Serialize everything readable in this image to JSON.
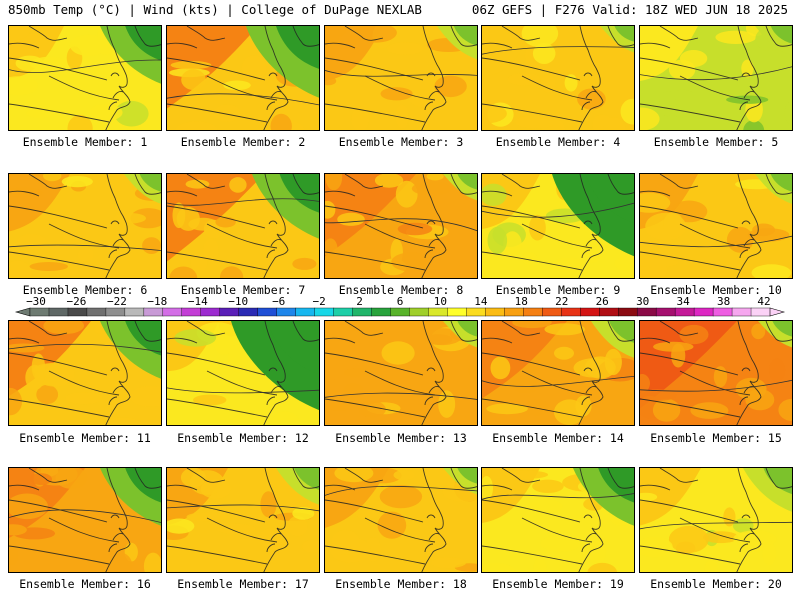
{
  "header": {
    "left": "850mb Temp (°C) | Wind (kts) | College of DuPage NEXLAB",
    "right": "06Z GEFS | F276 Valid: 18Z WED JUN 18 2025"
  },
  "member_caption_prefix": "Ensemble Member:",
  "members": [
    {
      "number": "1",
      "warmth": 0.42,
      "cool_ne": 0.55,
      "hot_nw": 0.25
    },
    {
      "number": "2",
      "warmth": 0.55,
      "cool_ne": 0.75,
      "hot_nw": 0.85
    },
    {
      "number": "3",
      "warmth": 0.55,
      "cool_ne": 0.2,
      "hot_nw": 0.3
    },
    {
      "number": "4",
      "warmth": 0.48,
      "cool_ne": 0.1,
      "hot_nw": 0.2
    },
    {
      "number": "5",
      "warmth": 0.3,
      "cool_ne": 0.15,
      "hot_nw": 0.3
    },
    {
      "number": "6",
      "warmth": 0.55,
      "cool_ne": 0.15,
      "hot_nw": 0.35
    },
    {
      "number": "7",
      "warmth": 0.58,
      "cool_ne": 0.65,
      "hot_nw": 0.95
    },
    {
      "number": "8",
      "warmth": 0.62,
      "cool_ne": 0.1,
      "hot_nw": 0.85
    },
    {
      "number": "9",
      "warmth": 0.38,
      "cool_ne": 0.9,
      "hot_nw": 0.3
    },
    {
      "number": "10",
      "warmth": 0.55,
      "cool_ne": 0.15,
      "hot_nw": 0.3
    },
    {
      "number": "11",
      "warmth": 0.55,
      "cool_ne": 0.55,
      "hot_nw": 0.7
    },
    {
      "number": "12",
      "warmth": 0.42,
      "cool_ne": 1.0,
      "hot_nw": 0.2
    },
    {
      "number": "13",
      "warmth": 0.6,
      "cool_ne": 0.1,
      "hot_nw": 0.45
    },
    {
      "number": "14",
      "warmth": 0.62,
      "cool_ne": 0.25,
      "hot_nw": 0.75
    },
    {
      "number": "15",
      "warmth": 0.75,
      "cool_ne": 0.1,
      "hot_nw": 0.95
    },
    {
      "number": "16",
      "warmth": 0.62,
      "cool_ne": 0.55,
      "hot_nw": 0.6
    },
    {
      "number": "17",
      "warmth": 0.52,
      "cool_ne": 0.25,
      "hot_nw": 0.35
    },
    {
      "number": "18",
      "warmth": 0.58,
      "cool_ne": 0.1,
      "hot_nw": 0.4
    },
    {
      "number": "19",
      "warmth": 0.45,
      "cool_ne": 0.55,
      "hot_nw": 0.3
    },
    {
      "number": "20",
      "warmth": 0.42,
      "cool_ne": 0.35,
      "hot_nw": 0.35
    }
  ],
  "colorbar": {
    "labels": [
      "−30",
      "−26",
      "−22",
      "−18",
      "−14",
      "−10",
      "−6",
      "−2",
      "2",
      "6",
      "10",
      "14",
      "18",
      "22",
      "26",
      "30",
      "34",
      "38",
      "42"
    ],
    "colors": [
      "#6e7b72",
      "#5f6866",
      "#4a4a4a",
      "#707070",
      "#8f8f8f",
      "#b9b9b9",
      "#c89ad6",
      "#d36ee6",
      "#c33ed6",
      "#9c2bd0",
      "#5a1fb8",
      "#2a2ab4",
      "#1f4fd6",
      "#1e86ea",
      "#17b7ef",
      "#17d7e7",
      "#1dcfa8",
      "#20b56a",
      "#28a33c",
      "#58b32a",
      "#9fcf2a",
      "#d9e82a",
      "#ffff2a",
      "#fbdc1f",
      "#fbbc14",
      "#f8a012",
      "#f58013",
      "#ef5a14",
      "#e83316",
      "#d41414",
      "#b10e14",
      "#8b0b12",
      "#8a0a46",
      "#a5106f",
      "#c41a98",
      "#dd27c3",
      "#ee5de2",
      "#f6a7ef",
      "#fbd2f6"
    ]
  }
}
